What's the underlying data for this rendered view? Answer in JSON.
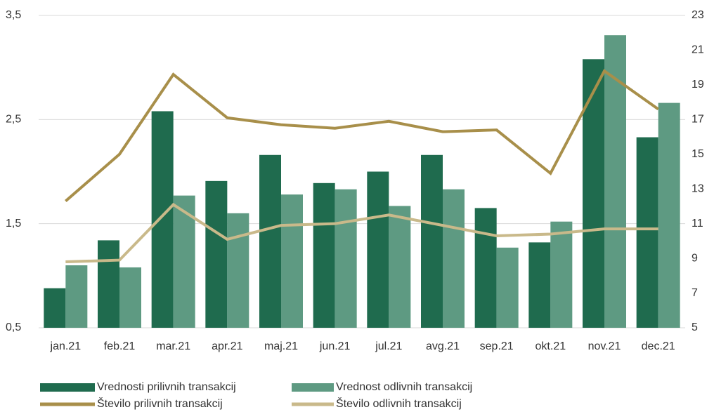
{
  "chart_data": {
    "type": "bar",
    "categories": [
      "jan.21",
      "feb.21",
      "mar.21",
      "apr.21",
      "maj.21",
      "jun.21",
      "jul.21",
      "avg.21",
      "sep.21",
      "okt.21",
      "nov.21",
      "dec.21"
    ],
    "series": [
      {
        "name": "Vrednosti prilivnih transakcij",
        "type": "bar",
        "color": "#1f6b4e",
        "values": [
          0.88,
          1.34,
          2.58,
          1.91,
          2.16,
          1.89,
          2.0,
          2.16,
          1.65,
          1.32,
          3.08,
          2.33
        ]
      },
      {
        "name": "Vrednost odlivnih transakcij",
        "type": "bar",
        "color": "#5e9a82",
        "values": [
          1.1,
          1.08,
          1.77,
          1.6,
          1.78,
          1.83,
          1.67,
          1.83,
          1.27,
          1.52,
          3.31,
          2.66
        ]
      },
      {
        "name": "Število prilivnih transakcij",
        "type": "line",
        "axis": "y2",
        "color": "#a88f4a",
        "values": [
          12.3,
          15.0,
          19.6,
          17.1,
          16.7,
          16.5,
          16.9,
          16.3,
          16.4,
          13.9,
          19.8,
          17.6
        ]
      },
      {
        "name": "Število odlivnih transakcij",
        "type": "line",
        "axis": "y2",
        "color": "#c9b98a",
        "values": [
          8.8,
          8.9,
          12.1,
          10.1,
          10.9,
          11.0,
          11.5,
          10.9,
          10.3,
          10.4,
          10.7,
          10.7
        ]
      }
    ],
    "ylim": [
      0.5,
      3.5
    ],
    "yticks": [
      {
        "value": 0.5,
        "label": "0,5"
      },
      {
        "value": 1.5,
        "label": "1,5"
      },
      {
        "value": 2.5,
        "label": "2,5"
      },
      {
        "value": 3.5,
        "label": "3,5"
      }
    ],
    "y2lim": [
      5,
      23
    ],
    "y2ticks": [
      5,
      7,
      9,
      11,
      13,
      15,
      17,
      19,
      21,
      23
    ],
    "grid": true
  }
}
